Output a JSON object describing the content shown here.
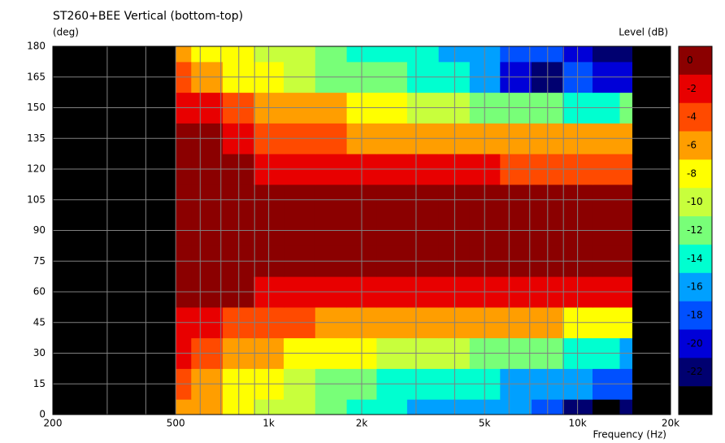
{
  "chart_data": {
    "type": "contour",
    "title": "ST260+BEE Vertical (bottom-top)",
    "y_label": "(deg)",
    "z_label": "Level  (dB)",
    "x_label": "Frequency  (Hz)",
    "log_x": true,
    "grid": true,
    "background": "#000000",
    "xlim": [
      200,
      20000
    ],
    "ylim": [
      0,
      180
    ],
    "xticks": [
      {
        "value": 200,
        "label": "200"
      },
      {
        "value": 500,
        "label": "500"
      },
      {
        "value": 1000,
        "label": "1k"
      },
      {
        "value": 2000,
        "label": "2k"
      },
      {
        "value": 5000,
        "label": "5k"
      },
      {
        "value": 10000,
        "label": "10k"
      },
      {
        "value": 20000,
        "label": "20k"
      }
    ],
    "xgrid_minor": [
      300,
      400,
      600,
      700,
      800,
      900,
      3000,
      4000,
      6000,
      7000,
      8000,
      9000
    ],
    "yticks": [
      0,
      15,
      30,
      45,
      60,
      75,
      90,
      105,
      120,
      135,
      150,
      165,
      180
    ],
    "zlevels": [
      0,
      -2,
      -4,
      -6,
      -8,
      -10,
      -12,
      -14,
      -16,
      -18,
      -20,
      -22,
      -24
    ],
    "zcolors": [
      "#8b0000",
      "#e80000",
      "#ff4a00",
      "#ff9e00",
      "#ffff00",
      "#c8ff3c",
      "#78ff78",
      "#00ffd0",
      "#00a0ff",
      "#0050ff",
      "#0000d8",
      "#000070",
      "#000000"
    ],
    "x": [
      500,
      630,
      800,
      1000,
      1250,
      1600,
      2000,
      2500,
      3150,
      4000,
      5000,
      6300,
      8000,
      10000,
      12500,
      15000
    ],
    "y": [
      0,
      15,
      30,
      45,
      60,
      75,
      90,
      105,
      120,
      135,
      150,
      165,
      180
    ],
    "z": [
      [
        -6,
        -6,
        -8,
        -10,
        -10,
        -12,
        -14,
        -14,
        -16,
        -16,
        -16,
        -16,
        -18,
        -22,
        -24,
        -22
      ],
      [
        -4,
        -6,
        -8,
        -8,
        -10,
        -12,
        -12,
        -14,
        -14,
        -14,
        -14,
        -16,
        -16,
        -16,
        -18,
        -18
      ],
      [
        -2,
        -4,
        -6,
        -6,
        -8,
        -8,
        -8,
        -10,
        -10,
        -10,
        -12,
        -12,
        -12,
        -14,
        -14,
        -16
      ],
      [
        -2,
        -2,
        -4,
        -4,
        -4,
        -6,
        -6,
        -6,
        -6,
        -6,
        -6,
        -6,
        -6,
        -8,
        -8,
        -8
      ],
      [
        0,
        0,
        0,
        -2,
        -2,
        -2,
        -2,
        -2,
        -2,
        -2,
        -2,
        -2,
        -2,
        -2,
        -2,
        -2
      ],
      [
        0,
        0,
        0,
        0,
        0,
        0,
        0,
        0,
        0,
        0,
        0,
        0,
        0,
        0,
        0,
        0
      ],
      [
        0,
        0,
        0,
        0,
        0,
        0,
        0,
        0,
        0,
        0,
        0,
        0,
        0,
        0,
        0,
        0
      ],
      [
        0,
        0,
        0,
        0,
        0,
        0,
        0,
        0,
        0,
        0,
        0,
        0,
        0,
        0,
        0,
        0
      ],
      [
        0,
        0,
        0,
        -2,
        -2,
        -2,
        -2,
        -2,
        -2,
        -2,
        -2,
        -4,
        -4,
        -4,
        -4,
        -4
      ],
      [
        0,
        0,
        -2,
        -4,
        -4,
        -4,
        -6,
        -6,
        -6,
        -6,
        -6,
        -6,
        -6,
        -6,
        -6,
        -6
      ],
      [
        -2,
        -2,
        -4,
        -6,
        -6,
        -6,
        -8,
        -8,
        -10,
        -10,
        -12,
        -12,
        -12,
        -14,
        -14,
        -12
      ],
      [
        -4,
        -6,
        -8,
        -8,
        -10,
        -12,
        -12,
        -12,
        -14,
        -14,
        -16,
        -20,
        -22,
        -18,
        -20,
        -20
      ],
      [
        -6,
        -8,
        -8,
        -10,
        -10,
        -12,
        -14,
        -14,
        -14,
        -16,
        -16,
        -18,
        -18,
        -20,
        -22,
        -22
      ]
    ]
  }
}
